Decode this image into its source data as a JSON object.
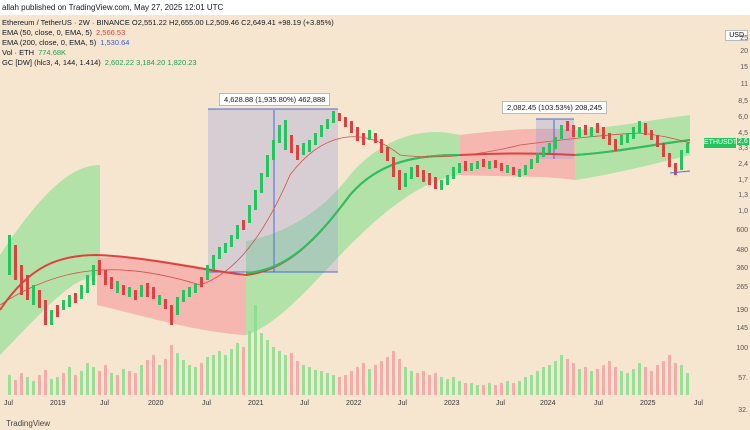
{
  "topbar": {
    "title": "allah published on TradingView.com, May 27, 2025 12:01 UTC"
  },
  "legend": {
    "symbol": "Ethereum / TetherUS · 2W · BINANCE",
    "ohlc": "O2,551.22 H2,655.00 L2,509.46 C2,649.41 +98.19 (+3.85%)",
    "ema50_label": "EMA (50, close, 0, EMA, 5)",
    "ema50_value": "2,566.53",
    "ema200_label": "EMA (200, close, 0, EMA, 5)",
    "ema200_value": "1,530.64",
    "vol_label": "Vol · ETH",
    "vol_value": "774.68K",
    "gc_label": "GC [DW] (hlc3, 4, 144, 1.414)",
    "gc_values": "2,602.22  3,184.20  1,820.23"
  },
  "boxes": {
    "box1": "4,628.88 (1,935.80%) 462,888",
    "box2": "2,082.45 (103.53%) 208,245"
  },
  "currency": "USD",
  "price_tag": {
    "symbol": "ETHUSDT",
    "value": "2,6",
    "sub": "12"
  },
  "price_ticks": [
    "25",
    "20",
    "15",
    "11",
    "8,5",
    "6,0",
    "4,5",
    "3,3",
    "2,4",
    "1,7",
    "1,3",
    "1,0",
    "600",
    "480",
    "360",
    "265",
    "190",
    "145",
    "100",
    "57.",
    "32."
  ],
  "x_ticks": [
    "Jul",
    "2019",
    "Jul",
    "2020",
    "Jul",
    "2021",
    "Jul",
    "2022",
    "Jul",
    "2023",
    "Jul",
    "2024",
    "Jul",
    "2025",
    "Jul"
  ],
  "colors": {
    "bull": "#22c55e",
    "bear": "#e04040",
    "cloud_green": "#86e08e",
    "cloud_red": "#f5a3a3",
    "ema50": "#d94a4a",
    "band": "#22b85a",
    "box": "#9aa0d8"
  },
  "watermark": "TradingView"
}
